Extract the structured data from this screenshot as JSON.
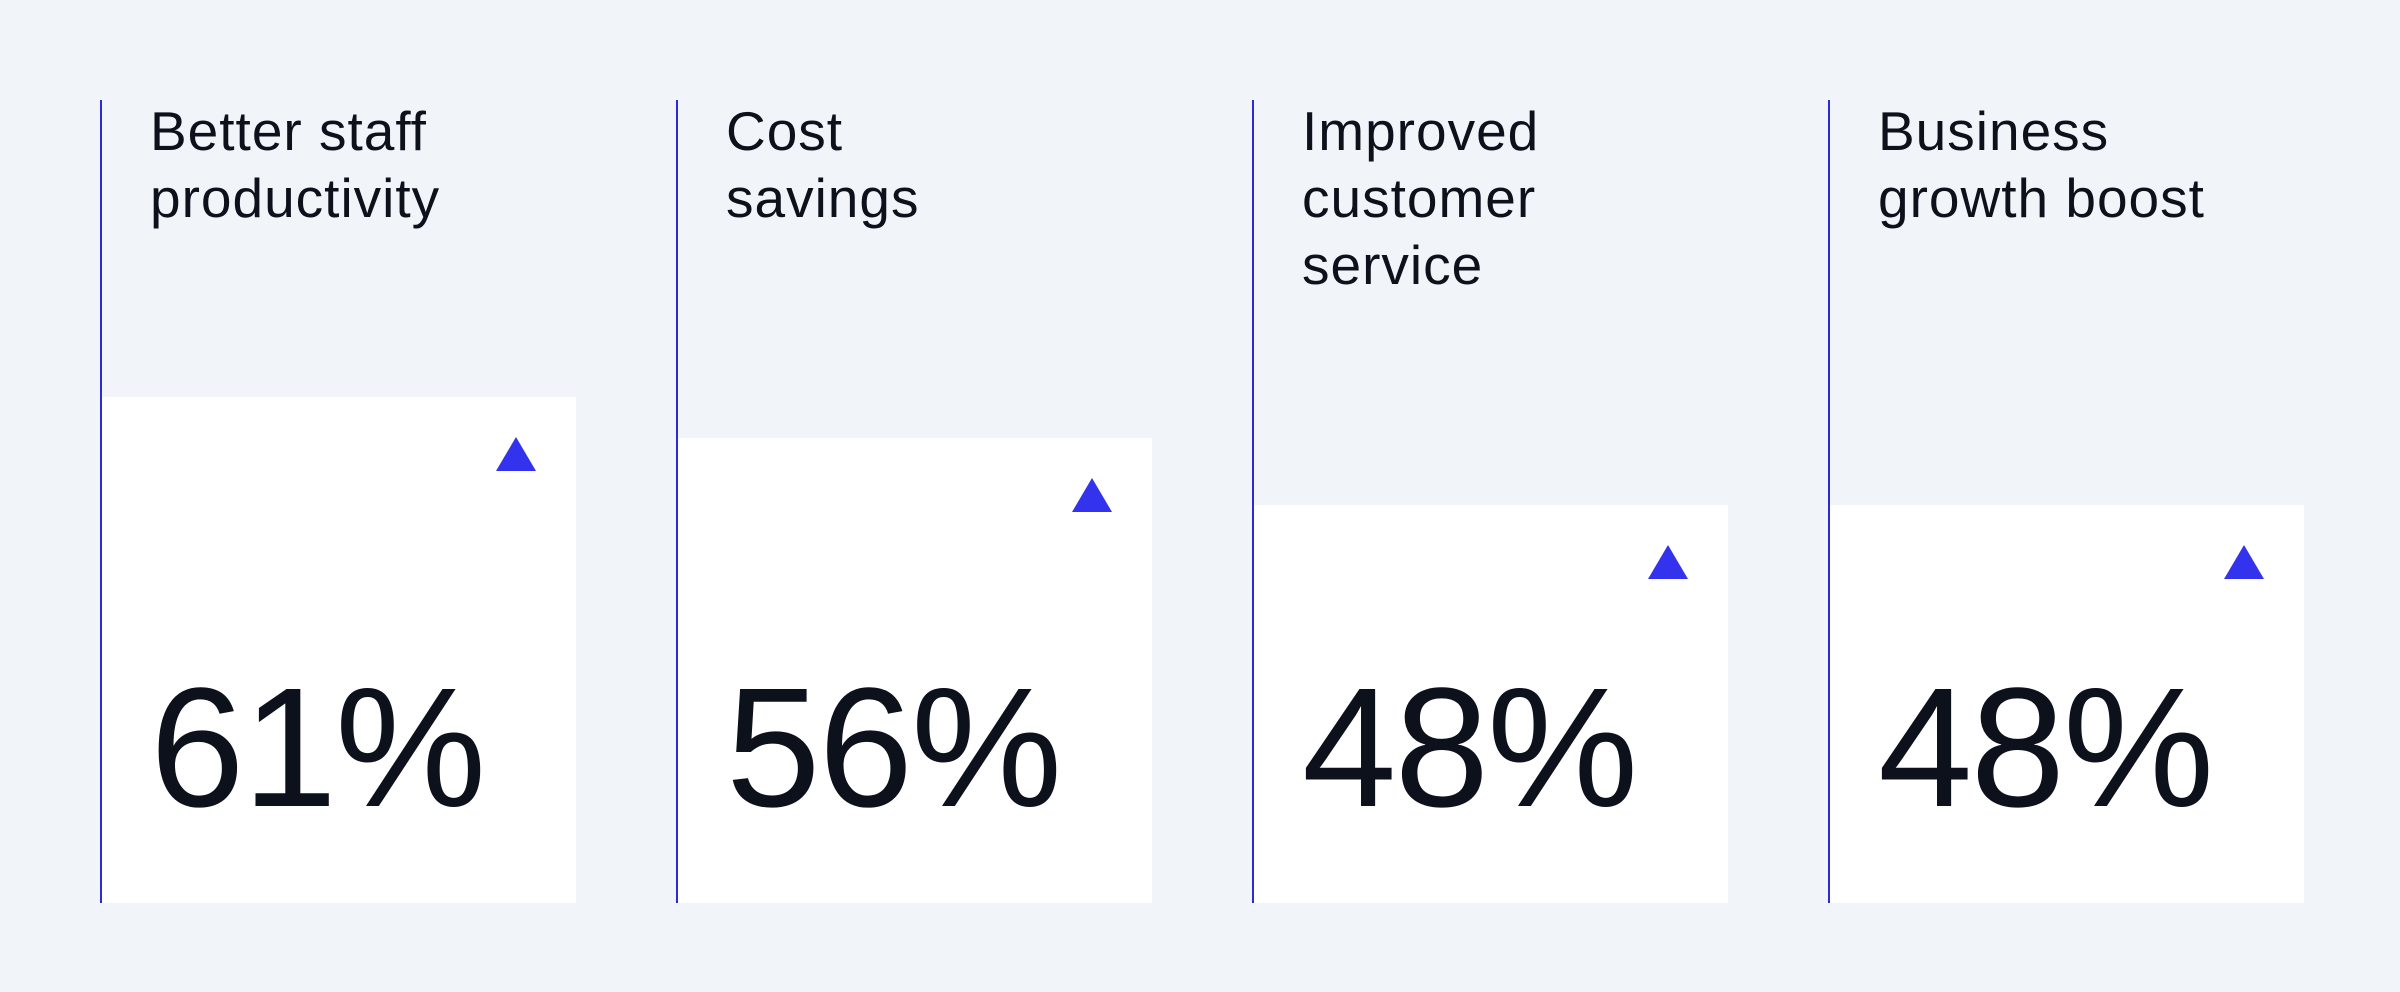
{
  "chart_data": {
    "type": "bar",
    "categories": [
      "Better staff\nproductivity",
      "Cost\nsavings",
      "Improved\ncustomer\nservice",
      "Business\ngrowth boost"
    ],
    "values": [
      61,
      56,
      48,
      48
    ],
    "value_labels": [
      "61%",
      "56%",
      "48%",
      "48%"
    ],
    "color": "#ffffff"
  }
}
